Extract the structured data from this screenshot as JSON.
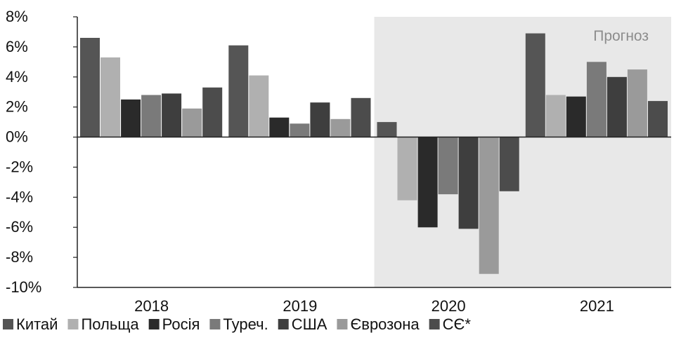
{
  "chart_data": {
    "type": "bar",
    "categories": [
      "2018",
      "2019",
      "2020",
      "2021"
    ],
    "series": [
      {
        "name": "Китай",
        "color": "#555555",
        "values": [
          6.6,
          6.1,
          1.0,
          6.9
        ]
      },
      {
        "name": "Польща",
        "color": "#b0b0b0",
        "values": [
          5.3,
          4.1,
          -4.2,
          2.8
        ]
      },
      {
        "name": "Росія",
        "color": "#2a2a2a",
        "values": [
          2.5,
          1.3,
          -6.0,
          2.7
        ]
      },
      {
        "name": "Туреч.",
        "color": "#7a7a7a",
        "values": [
          2.8,
          0.9,
          -3.8,
          5.0
        ]
      },
      {
        "name": "США",
        "color": "#3e3e3e",
        "values": [
          2.9,
          2.3,
          -6.1,
          4.0
        ]
      },
      {
        "name": "Єврозона",
        "color": "#9a9a9a",
        "values": [
          1.9,
          1.2,
          -9.1,
          4.5
        ]
      },
      {
        "name": "СЄ*",
        "color": "#4c4c4c",
        "values": [
          3.3,
          2.6,
          -3.6,
          2.4
        ]
      }
    ],
    "ylim": [
      -10,
      8
    ],
    "yticks": [
      8,
      6,
      4,
      2,
      0,
      -2,
      -4,
      -6,
      -8,
      -10
    ],
    "ytick_suffix": "%",
    "forecast_region": {
      "from_category": "2020",
      "to_category": "2021",
      "color": "#e8e8e8"
    },
    "annotation": "Прогноз",
    "legend_position": "bottom",
    "grid": false
  }
}
